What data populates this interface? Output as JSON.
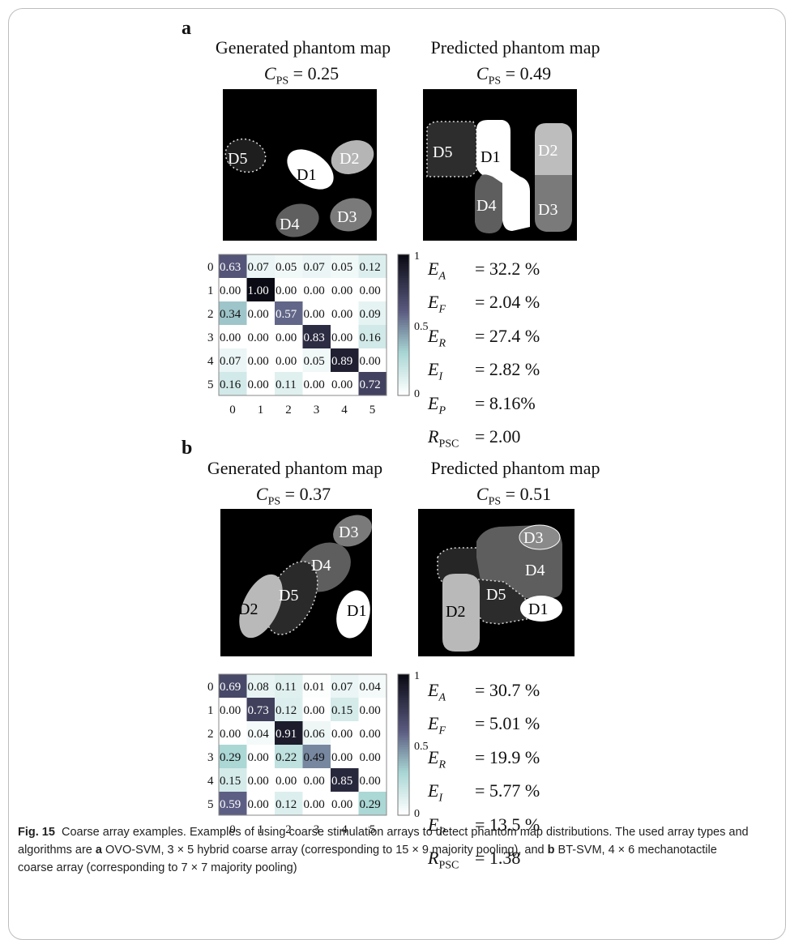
{
  "panels": [
    {
      "label": "a",
      "generated_title": "Generated phantom map",
      "predicted_title": "Predicted phantom map",
      "generated_cps_value": "= 0.25",
      "predicted_cps_value": "= 0.49",
      "cps_symbol": "C",
      "cps_sub": "PS",
      "generated_regions": [
        "D5",
        "D1",
        "D2",
        "D4",
        "D3"
      ],
      "predicted_regions": [
        "D5",
        "D1",
        "D2",
        "D4",
        "D3"
      ],
      "matrix": {
        "row_labels": [
          "0",
          "1",
          "2",
          "3",
          "4",
          "5"
        ],
        "col_labels": [
          "0",
          "1",
          "2",
          "3",
          "4",
          "5"
        ],
        "values": [
          [
            0.63,
            0.07,
            0.05,
            0.07,
            0.05,
            0.12
          ],
          [
            0.0,
            1.0,
            0.0,
            0.0,
            0.0,
            0.0
          ],
          [
            0.34,
            0.0,
            0.57,
            0.0,
            0.0,
            0.09
          ],
          [
            0.0,
            0.0,
            0.0,
            0.83,
            0.0,
            0.16
          ],
          [
            0.07,
            0.0,
            0.0,
            0.05,
            0.89,
            0.0
          ],
          [
            0.16,
            0.0,
            0.11,
            0.0,
            0.0,
            0.72
          ]
        ],
        "colorbar_ticks": [
          "1",
          "0.5",
          "0"
        ]
      },
      "metrics": [
        {
          "sym": "E",
          "sub": "A",
          "value": "= 32.2 %"
        },
        {
          "sym": "E",
          "sub": "F",
          "value": "= 2.04 %"
        },
        {
          "sym": "E",
          "sub": "R",
          "value": "= 27.4 %"
        },
        {
          "sym": "E",
          "sub": "I",
          "value": "= 2.82 %"
        },
        {
          "sym": "E",
          "sub": "P",
          "value": "= 8.16%"
        },
        {
          "sym": "R",
          "sub": "PSC",
          "value": "= 2.00"
        }
      ]
    },
    {
      "label": "b",
      "generated_title": "Generated phantom map",
      "predicted_title": "Predicted phantom map",
      "generated_cps_value": "= 0.37",
      "predicted_cps_value": "= 0.51",
      "cps_symbol": "C",
      "cps_sub": "PS",
      "generated_regions": [
        "D3",
        "D4",
        "D5",
        "D2",
        "D1"
      ],
      "predicted_regions": [
        "D3",
        "D4",
        "D5",
        "D2",
        "D1"
      ],
      "matrix": {
        "row_labels": [
          "0",
          "1",
          "2",
          "3",
          "4",
          "5"
        ],
        "col_labels": [
          "0",
          "1",
          "2",
          "3",
          "4",
          "5"
        ],
        "values": [
          [
            0.69,
            0.08,
            0.11,
            0.01,
            0.07,
            0.04
          ],
          [
            0.0,
            0.73,
            0.12,
            0.0,
            0.15,
            0.0
          ],
          [
            0.0,
            0.04,
            0.91,
            0.06,
            0.0,
            0.0
          ],
          [
            0.29,
            0.0,
            0.22,
            0.49,
            0.0,
            0.0
          ],
          [
            0.15,
            0.0,
            0.0,
            0.0,
            0.85,
            0.0
          ],
          [
            0.59,
            0.0,
            0.12,
            0.0,
            0.0,
            0.29
          ]
        ],
        "colorbar_ticks": [
          "1",
          "0.5",
          "0"
        ]
      },
      "metrics": [
        {
          "sym": "E",
          "sub": "A",
          "value": "= 30.7 %"
        },
        {
          "sym": "E",
          "sub": "F",
          "value": "= 5.01 %"
        },
        {
          "sym": "E",
          "sub": "R",
          "value": "= 19.9 %"
        },
        {
          "sym": "E",
          "sub": "I",
          "value": "= 5.77 %"
        },
        {
          "sym": "E",
          "sub": "P",
          "value": "= 13.5 %"
        },
        {
          "sym": "R",
          "sub": "PSC",
          "value": "= 1.38"
        }
      ]
    }
  ],
  "caption": {
    "fig_label": "Fig. 15",
    "title": "Coarse array examples.",
    "text_1": "Examples of using coarse stimulation arrays to detect phantom map distributions. The used array types and algorithms are",
    "a_label": "a",
    "text_2": "OVO-SVM, 3 × 5 hybrid coarse array (corresponding to 15 × 9 majority pooling), and",
    "b_label": "b",
    "text_3": "BT-SVM, 4 × 6 mechanotactile coarse array (corresponding to 7 × 7 majority pooling)"
  }
}
